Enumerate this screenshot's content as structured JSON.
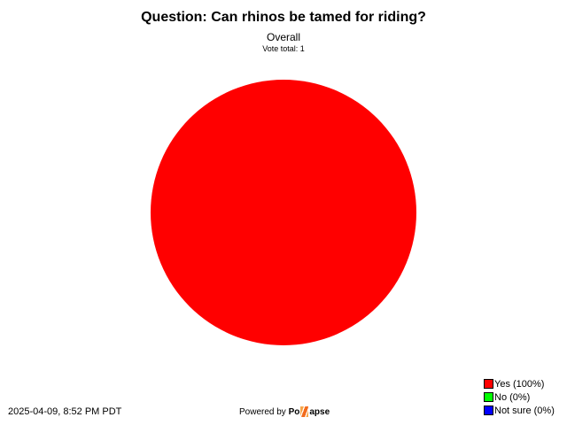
{
  "chart_data": {
    "type": "pie",
    "title": "Question: Can rhinos be tamed for riding?",
    "subtitle": "Overall",
    "note": "Vote total: 1",
    "categories": [
      "Yes",
      "No",
      "Not sure"
    ],
    "values": [
      100,
      0,
      0
    ],
    "legend_labels": [
      "Yes (100%)",
      "No (0%)",
      "Not sure (0%)"
    ],
    "colors": [
      "#ff0000",
      "#00ff00",
      "#0000ff"
    ],
    "legend_position": "bottom-right"
  },
  "footer": {
    "date": "2025-04-09, 8:52 PM PDT",
    "powered_by": "Powered by",
    "logo_left": "Po",
    "logo_right": "apse"
  }
}
